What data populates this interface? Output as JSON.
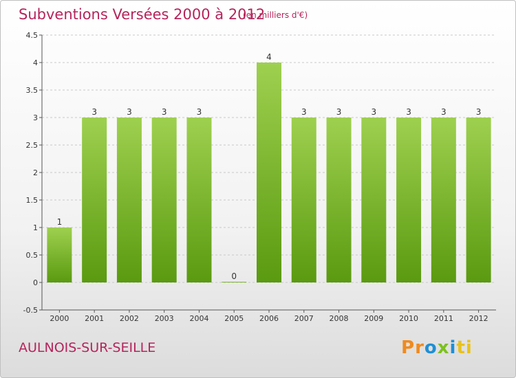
{
  "header": {
    "title": "Subventions Versées 2000 à 2012",
    "unit": "(en milliers d'€)"
  },
  "footer": {
    "commune": "AULNOIS-SUR-SEILLE",
    "logo": [
      "P",
      "r",
      "o",
      "x",
      "i",
      "ti"
    ]
  },
  "colors": {
    "title": "#b5245a",
    "bar_top": "#9ed04f",
    "bar_bottom": "#5a9a10",
    "grid": "#c8c8c8"
  },
  "chart_data": {
    "type": "bar",
    "title": "Subventions Versées 2000 à 2012",
    "categories": [
      "2000",
      "2001",
      "2002",
      "2003",
      "2004",
      "2005",
      "2006",
      "2007",
      "2008",
      "2009",
      "2010",
      "2011",
      "2012"
    ],
    "values": [
      1,
      3,
      3,
      3,
      3,
      0,
      4,
      3,
      3,
      3,
      3,
      3,
      3
    ],
    "ylim": [
      -0.5,
      4.5
    ],
    "yticks": [
      "-0.5",
      "0",
      "0.5",
      "1",
      "1.5",
      "2",
      "2.5",
      "3",
      "3.5",
      "4",
      "4.5"
    ],
    "ytick_values": [
      -0.5,
      0,
      0.5,
      1,
      1.5,
      2,
      2.5,
      3,
      3.5,
      4,
      4.5
    ],
    "grid": "horizontal dashed",
    "xlabel": "",
    "ylabel": ""
  }
}
